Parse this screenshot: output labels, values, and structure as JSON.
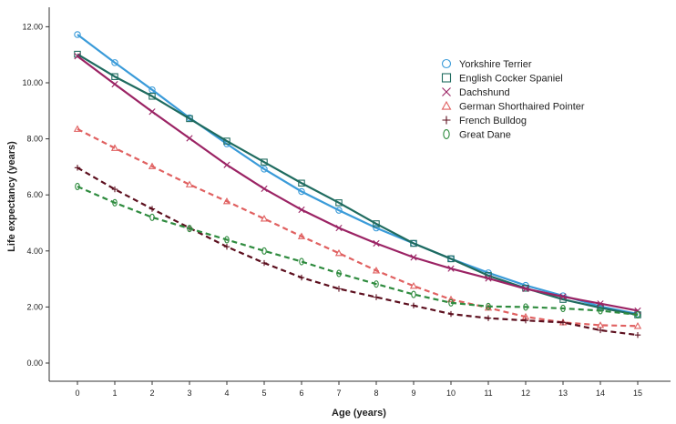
{
  "chart_data": {
    "type": "line",
    "title": "",
    "xlabel": "Age (years)",
    "ylabel": "Life expectancy (years)",
    "x": [
      0,
      1,
      2,
      3,
      4,
      5,
      6,
      7,
      8,
      9,
      10,
      11,
      12,
      13,
      14,
      15
    ],
    "x_tick_labels": [
      "0",
      "1",
      "2",
      "3",
      "4",
      "5",
      "6",
      "7",
      "8",
      "9",
      "10",
      "11",
      "12",
      "13",
      "14",
      "15"
    ],
    "xlim": [
      -0.6,
      15.6
    ],
    "ylim": [
      -0.6,
      12.7
    ],
    "y_ticks": [
      0,
      2,
      4,
      6,
      8,
      10,
      12
    ],
    "y_tick_labels": [
      "0.00",
      "2.00",
      "4.00",
      "6.00",
      "8.00",
      "10.00",
      "12.00"
    ],
    "grid": false,
    "legend_position": "top-right",
    "series": [
      {
        "name": "Yorkshire Terrier",
        "color": "#3a9bd9",
        "marker": "circle",
        "dashed": false,
        "values": [
          11.72,
          10.72,
          9.75,
          8.75,
          7.82,
          6.92,
          6.12,
          5.45,
          4.82,
          4.27,
          3.72,
          3.22,
          2.77,
          2.4,
          2.02,
          1.75
        ]
      },
      {
        "name": "English Cocker Spaniel",
        "color": "#1f6b5f",
        "marker": "square",
        "dashed": false,
        "values": [
          11.02,
          10.22,
          9.52,
          8.72,
          7.92,
          7.17,
          6.42,
          5.72,
          4.97,
          4.27,
          3.72,
          3.12,
          2.67,
          2.27,
          1.97,
          1.72
        ]
      },
      {
        "name": "Dachshund",
        "color": "#9b2364",
        "marker": "x",
        "dashed": false,
        "values": [
          10.95,
          9.95,
          8.97,
          8.02,
          7.07,
          6.22,
          5.47,
          4.82,
          4.27,
          3.77,
          3.37,
          3.02,
          2.65,
          2.37,
          2.12,
          1.87
        ]
      },
      {
        "name": "German Shorthaired Pointer",
        "color": "#e06060",
        "marker": "triangle",
        "dashed": true,
        "values": [
          8.35,
          7.67,
          7.02,
          6.37,
          5.77,
          5.15,
          4.52,
          3.92,
          3.3,
          2.75,
          2.27,
          1.97,
          1.65,
          1.45,
          1.35,
          1.32
        ]
      },
      {
        "name": "French Bulldog",
        "color": "#5c0f1e",
        "marker": "plus",
        "dashed": true,
        "values": [
          6.97,
          6.2,
          5.5,
          4.82,
          4.15,
          3.57,
          3.05,
          2.65,
          2.35,
          2.05,
          1.75,
          1.6,
          1.52,
          1.45,
          1.17,
          1.0
        ]
      },
      {
        "name": "Great Dane",
        "color": "#2e8b3e",
        "marker": "ring",
        "dashed": true,
        "values": [
          6.3,
          5.72,
          5.2,
          4.8,
          4.4,
          4.0,
          3.62,
          3.2,
          2.82,
          2.45,
          2.15,
          2.02,
          2.0,
          1.95,
          1.87,
          1.72
        ]
      }
    ]
  }
}
